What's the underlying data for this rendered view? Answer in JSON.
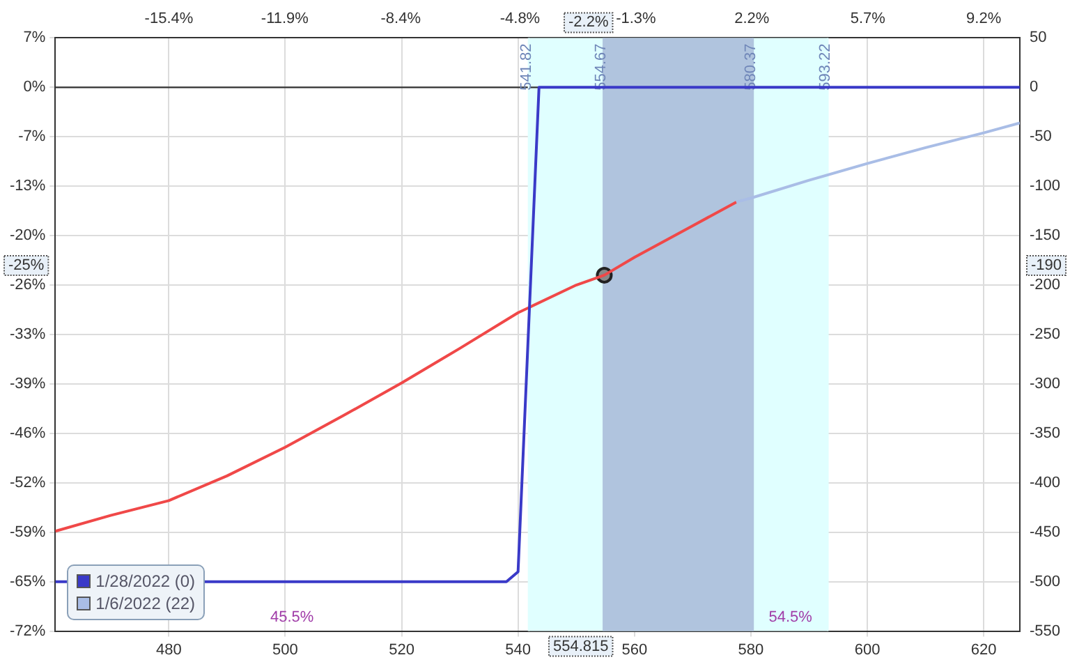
{
  "chart_data": {
    "type": "line",
    "xlim": [
      460.5,
      626.2
    ],
    "xticks": [
      480,
      500,
      520,
      540,
      560,
      580,
      600,
      620
    ],
    "x2lim": [
      -18.83,
      10.29
    ],
    "x2ticks": [
      {
        "value": -15.4,
        "label": "-15.4%"
      },
      {
        "value": -11.9,
        "label": "-11.9%"
      },
      {
        "value": -8.4,
        "label": "-8.4%"
      },
      {
        "value": -4.8,
        "label": "-4.8%"
      },
      {
        "value": -1.3,
        "label": "-1.3%"
      },
      {
        "value": 2.2,
        "label": "2.2%"
      },
      {
        "value": 5.7,
        "label": "5.7%"
      },
      {
        "value": 9.2,
        "label": "9.2%"
      }
    ],
    "ylim": [
      -71.9,
      6.54
    ],
    "yticks": [
      {
        "value": 6.54,
        "label": "7%"
      },
      {
        "value": 0,
        "label": "0%"
      },
      {
        "value": -6.54,
        "label": "-7%"
      },
      {
        "value": -13.07,
        "label": "-13%"
      },
      {
        "value": -19.61,
        "label": "-20%"
      },
      {
        "value": -26.14,
        "label": "-26%"
      },
      {
        "value": -32.68,
        "label": "-33%"
      },
      {
        "value": -39.22,
        "label": "-39%"
      },
      {
        "value": -45.75,
        "label": "-46%"
      },
      {
        "value": -52.29,
        "label": "-52%"
      },
      {
        "value": -58.82,
        "label": "-59%"
      },
      {
        "value": -65.36,
        "label": "-65%"
      },
      {
        "value": -71.9,
        "label": "-72%"
      }
    ],
    "y2lim": [
      -550,
      50
    ],
    "y2ticks": [
      50,
      0,
      -50,
      -100,
      -150,
      -200,
      -250,
      -300,
      -350,
      -400,
      -450,
      -500,
      -550
    ],
    "grid": true,
    "legend": "bottom left",
    "marker": "none",
    "line_style": "solid",
    "bands": [
      {
        "axis": "x",
        "from": 541.82,
        "to": 593.22,
        "color": "#e0ffff"
      },
      {
        "axis": "x",
        "from": 554.67,
        "to": 580.37,
        "color": "#b0c4de"
      }
    ],
    "ref_lines": [
      {
        "axis": "y2",
        "value": 0,
        "color": "#333333"
      },
      {
        "axis": "x",
        "value": 541.82,
        "label": "541.82",
        "color": "#e0ffff"
      },
      {
        "axis": "x",
        "value": 554.67,
        "label": "554.67",
        "color": "#b0c4de"
      },
      {
        "axis": "x",
        "value": 580.37,
        "label": "580.37",
        "color": "#b0c4de"
      },
      {
        "axis": "x",
        "value": 593.22,
        "label": "593.22",
        "color": "#e0ffff"
      }
    ],
    "series": [
      {
        "name": "1/28/2022 (0)",
        "axis": "y2",
        "color": "#3a3ac8",
        "x": [
          460.5,
          538,
          540,
          543.6,
          626.2
        ],
        "values": [
          -500,
          -500,
          -490,
          0,
          0
        ]
      },
      {
        "name": "1/6/2022 (22)",
        "axis": "y2",
        "color": "#a9bde6",
        "x": [
          577.5,
          580,
          590,
          600,
          610,
          620,
          626.2
        ],
        "values": [
          -116,
          -112,
          -94,
          -77,
          -61,
          -46,
          -36
        ]
      },
      {
        "axis": "y2",
        "color": "#f04848",
        "x": [
          460.5,
          470,
          480,
          490,
          500,
          510,
          520,
          530,
          540,
          550,
          554.815,
          560,
          570,
          577.5
        ],
        "values": [
          -449,
          -433,
          -418,
          -393,
          -364,
          -332,
          -299,
          -264,
          -228,
          -200,
          -190,
          -172,
          -140,
          -116
        ]
      },
      {
        "type": "scatter",
        "axis": "y2",
        "marker": "circle",
        "color": "#222222",
        "x": [
          554.815
        ],
        "values": [
          -190
        ]
      }
    ],
    "annotations": [
      "554.815",
      "-2.2%",
      "-25%",
      "-190",
      "45.5%",
      "54.5%"
    ]
  }
}
